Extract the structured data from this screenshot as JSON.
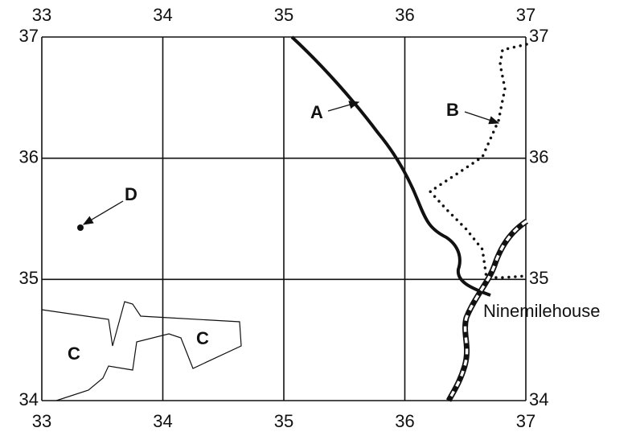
{
  "grid": {
    "eastings": [
      33,
      34,
      35,
      36,
      37
    ],
    "northings": [
      37,
      36,
      35,
      34
    ]
  },
  "features": [
    {
      "label": "A"
    },
    {
      "label": "B"
    },
    {
      "label": "C"
    },
    {
      "label": "C"
    },
    {
      "label": "D"
    },
    {
      "label": "Ninemilehouse"
    }
  ]
}
